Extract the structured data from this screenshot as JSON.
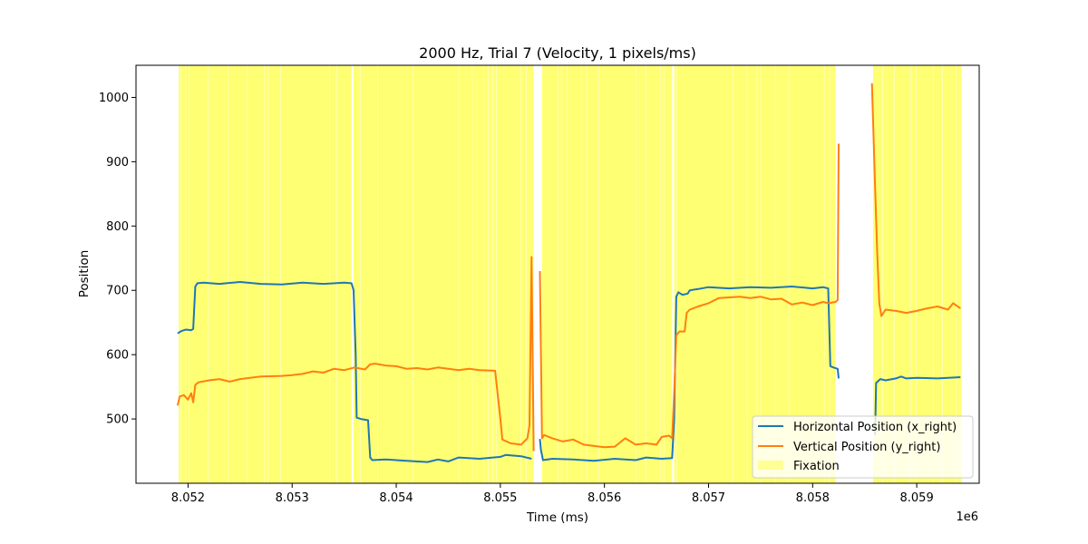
{
  "chart_data": {
    "type": "line",
    "title": "2000 Hz, Trial 7 (Velocity, 1 pixels/ms)",
    "xlabel": "Time (ms)",
    "ylabel": "Position",
    "x_offset_label": "1e6",
    "xlim": [
      8051.5,
      8059.6
    ],
    "ylim": [
      400,
      1050
    ],
    "x_ticks": [
      8052,
      8053,
      8054,
      8055,
      8056,
      8057,
      8058,
      8059
    ],
    "x_tick_labels": [
      "8.052",
      "8.053",
      "8.054",
      "8.055",
      "8.056",
      "8.057",
      "8.058",
      "8.059"
    ],
    "y_ticks": [
      500,
      600,
      700,
      800,
      900,
      1000
    ],
    "y_tick_labels": [
      "500",
      "600",
      "700",
      "800",
      "900",
      "1000"
    ],
    "grid": false,
    "legend_position": "lower right",
    "series": [
      {
        "name": "Horizontal Position (x_right)",
        "color": "#1f77b4",
        "segments": [
          [
            [
              8051.9,
              633
            ],
            [
              8051.94,
              637
            ],
            [
              8051.98,
              639
            ],
            [
              8052.03,
              638
            ],
            [
              8052.05,
              640
            ],
            [
              8052.07,
              706
            ],
            [
              8052.09,
              711
            ],
            [
              8052.15,
              712
            ],
            [
              8052.3,
              710
            ],
            [
              8052.5,
              713
            ],
            [
              8052.7,
              710
            ],
            [
              8052.9,
              709
            ],
            [
              8053.1,
              712
            ],
            [
              8053.3,
              710
            ],
            [
              8053.5,
              712
            ],
            [
              8053.57,
              711
            ],
            [
              8053.59,
              700
            ],
            [
              8053.61,
              600
            ],
            [
              8053.62,
              502
            ],
            [
              8053.66,
              500
            ],
            [
              8053.73,
              498
            ],
            [
              8053.75,
              440
            ],
            [
              8053.77,
              436
            ],
            [
              8053.9,
              437
            ],
            [
              8054.1,
              435
            ],
            [
              8054.3,
              433
            ],
            [
              8054.4,
              437
            ],
            [
              8054.5,
              434
            ],
            [
              8054.6,
              440
            ],
            [
              8054.8,
              438
            ],
            [
              8055.0,
              441
            ],
            [
              8055.05,
              444
            ],
            [
              8055.2,
              442
            ],
            [
              8055.3,
              438
            ]
          ],
          [
            [
              8055.38,
              469
            ],
            [
              8055.39,
              452
            ],
            [
              8055.41,
              436
            ],
            [
              8055.5,
              438
            ],
            [
              8055.7,
              437
            ],
            [
              8055.9,
              435
            ],
            [
              8056.1,
              438
            ],
            [
              8056.3,
              436
            ],
            [
              8056.4,
              440
            ],
            [
              8056.55,
              438
            ],
            [
              8056.65,
              439
            ],
            [
              8056.67,
              500
            ],
            [
              8056.69,
              690
            ],
            [
              8056.71,
              697
            ],
            [
              8056.75,
              693
            ],
            [
              8056.8,
              695
            ],
            [
              8056.82,
              700
            ],
            [
              8056.9,
              702
            ],
            [
              8057.0,
              705
            ],
            [
              8057.2,
              703
            ],
            [
              8057.4,
              705
            ],
            [
              8057.6,
              704
            ],
            [
              8057.8,
              706
            ],
            [
              8058.0,
              703
            ],
            [
              8058.1,
              705
            ],
            [
              8058.15,
              703
            ],
            [
              8058.16,
              640
            ],
            [
              8058.17,
              582
            ],
            [
              8058.2,
              580
            ],
            [
              8058.24,
              578
            ],
            [
              8058.25,
              563
            ]
          ],
          [
            [
              8058.6,
              475
            ],
            [
              8058.61,
              556
            ],
            [
              8058.65,
              562
            ],
            [
              8058.7,
              560
            ],
            [
              8058.8,
              563
            ],
            [
              8058.85,
              566
            ],
            [
              8058.9,
              563
            ],
            [
              8059.0,
              564
            ],
            [
              8059.2,
              563
            ],
            [
              8059.42,
              565
            ]
          ]
        ]
      },
      {
        "name": "Vertical Position (y_right)",
        "color": "#ff7f0e",
        "segments": [
          [
            [
              8051.9,
              521
            ],
            [
              8051.92,
              535
            ],
            [
              8051.96,
              537
            ],
            [
              8052.0,
              530
            ],
            [
              8052.03,
              540
            ],
            [
              8052.05,
              526
            ],
            [
              8052.07,
              553
            ],
            [
              8052.1,
              557
            ],
            [
              8052.2,
              560
            ],
            [
              8052.3,
              562
            ],
            [
              8052.4,
              558
            ],
            [
              8052.5,
              562
            ],
            [
              8052.7,
              566
            ],
            [
              8052.9,
              567
            ],
            [
              8053.0,
              568
            ],
            [
              8053.1,
              570
            ],
            [
              8053.2,
              574
            ],
            [
              8053.3,
              572
            ],
            [
              8053.4,
              578
            ],
            [
              8053.5,
              576
            ],
            [
              8053.6,
              580
            ],
            [
              8053.7,
              577
            ],
            [
              8053.75,
              585
            ],
            [
              8053.8,
              586
            ],
            [
              8053.9,
              583
            ],
            [
              8054.0,
              582
            ],
            [
              8054.1,
              578
            ],
            [
              8054.2,
              579
            ],
            [
              8054.3,
              577
            ],
            [
              8054.4,
              580
            ],
            [
              8054.5,
              578
            ],
            [
              8054.6,
              576
            ],
            [
              8054.7,
              578
            ],
            [
              8054.8,
              576
            ],
            [
              8054.95,
              575
            ],
            [
              8055.0,
              500
            ],
            [
              8055.02,
              468
            ],
            [
              8055.1,
              462
            ],
            [
              8055.2,
              460
            ],
            [
              8055.26,
              470
            ],
            [
              8055.28,
              490
            ],
            [
              8055.3,
              752
            ],
            [
              8055.32,
              450
            ]
          ],
          [
            [
              8055.38,
              730
            ],
            [
              8055.4,
              470
            ],
            [
              8055.42,
              475
            ],
            [
              8055.5,
              470
            ],
            [
              8055.6,
              465
            ],
            [
              8055.7,
              468
            ],
            [
              8055.8,
              460
            ],
            [
              8055.9,
              458
            ],
            [
              8056.0,
              456
            ],
            [
              8056.1,
              457
            ],
            [
              8056.2,
              470
            ],
            [
              8056.3,
              460
            ],
            [
              8056.4,
              462
            ],
            [
              8056.5,
              460
            ],
            [
              8056.55,
              472
            ],
            [
              8056.62,
              474
            ],
            [
              8056.65,
              470
            ],
            [
              8056.67,
              540
            ],
            [
              8056.69,
              630
            ],
            [
              8056.72,
              636
            ],
            [
              8056.77,
              636
            ],
            [
              8056.79,
              665
            ],
            [
              8056.82,
              670
            ],
            [
              8056.9,
              675
            ],
            [
              8057.0,
              680
            ],
            [
              8057.1,
              688
            ],
            [
              8057.2,
              689
            ],
            [
              8057.3,
              690
            ],
            [
              8057.4,
              688
            ],
            [
              8057.5,
              690
            ],
            [
              8057.6,
              686
            ],
            [
              8057.7,
              687
            ],
            [
              8057.8,
              678
            ],
            [
              8057.9,
              681
            ],
            [
              8058.0,
              677
            ],
            [
              8058.1,
              682
            ],
            [
              8058.15,
              680
            ],
            [
              8058.22,
              682
            ],
            [
              8058.24,
              685
            ],
            [
              8058.25,
              928
            ]
          ],
          [
            [
              8058.57,
              1022
            ],
            [
              8058.6,
              860
            ],
            [
              8058.62,
              760
            ],
            [
              8058.64,
              680
            ],
            [
              8058.66,
              660
            ],
            [
              8058.7,
              670
            ],
            [
              8058.8,
              668
            ],
            [
              8058.9,
              665
            ],
            [
              8059.0,
              668
            ],
            [
              8059.1,
              672
            ],
            [
              8059.2,
              675
            ],
            [
              8059.3,
              670
            ],
            [
              8059.35,
              680
            ],
            [
              8059.42,
              672
            ]
          ]
        ]
      }
    ],
    "shaded_regions": {
      "name": "Fixation",
      "color": "#ffff00",
      "intervals": [
        [
          8051.91,
          8053.57
        ],
        [
          8053.59,
          8055.32
        ],
        [
          8055.4,
          8056.65
        ],
        [
          8056.67,
          8058.22
        ],
        [
          8058.58,
          8059.43
        ]
      ]
    }
  }
}
